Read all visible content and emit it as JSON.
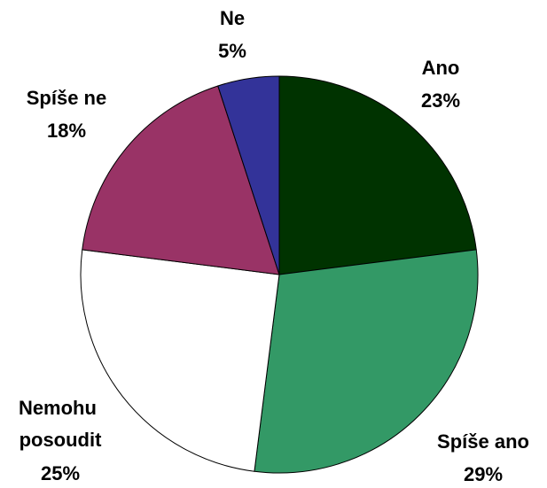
{
  "chart_data": {
    "type": "pie",
    "categories": [
      "Ano",
      "Spíše ano",
      "Nemohu posoudit",
      "Spíše ne",
      "Ne"
    ],
    "values": [
      23,
      29,
      25,
      18,
      5
    ],
    "value_labels": [
      "23%",
      "29%",
      "25%",
      "18%",
      "5%"
    ],
    "colors": [
      "#003300",
      "#339966",
      "#ffffff",
      "#993366",
      "#333399"
    ]
  }
}
